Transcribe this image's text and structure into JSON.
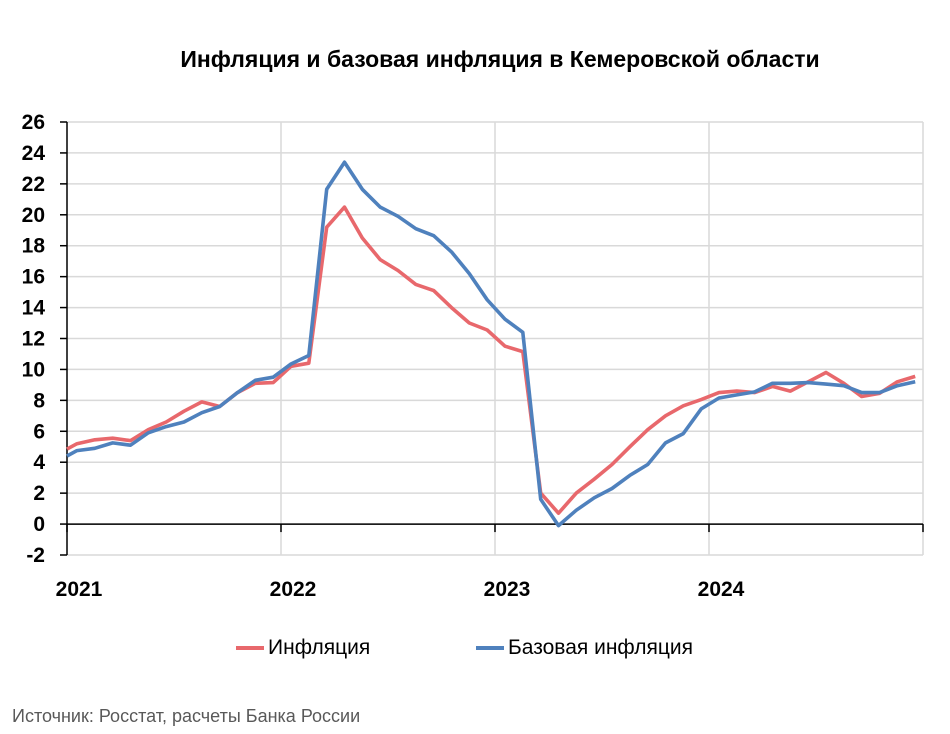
{
  "chart_data": {
    "type": "line",
    "title": "Инфляция и базовая инфляция в Кемеровской области",
    "xlabel": "",
    "ylabel": "",
    "x_unit": "months since January 2021",
    "x": [
      0,
      0.56,
      1.56,
      2.56,
      3.56,
      4.56,
      5.56,
      6.56,
      7.56,
      8.56,
      9.56,
      10.56,
      11.56,
      12.56,
      13.56,
      14.56,
      15.56,
      16.56,
      17.56,
      18.56,
      19.56,
      20.56,
      21.56,
      22.56,
      23.56,
      24.56,
      25.56,
      26.56,
      27.56,
      28.56,
      29.56,
      30.56,
      31.56,
      32.56,
      33.56,
      34.56,
      35.56,
      36.56,
      37.56,
      38.56,
      39.56,
      40.56,
      41.56,
      42.56,
      43.56,
      44.56,
      45.56,
      46.56,
      47.56
    ],
    "xlim": [
      0,
      48
    ],
    "x_ticks": [
      {
        "value": 0,
        "label": "2021"
      },
      {
        "value": 12,
        "label": "2022"
      },
      {
        "value": 24,
        "label": "2023"
      },
      {
        "value": 36,
        "label": "2024"
      }
    ],
    "ylim": [
      -2,
      26
    ],
    "y_ticks": [
      "-2",
      "0",
      "2",
      "4",
      "6",
      "8",
      "10",
      "12",
      "14",
      "16",
      "18",
      "20",
      "22",
      "24",
      "26"
    ],
    "grid": true,
    "legend_position": "bottom",
    "series": [
      {
        "name": "Инфляция",
        "color": "#e8686c",
        "values": [
          4.85,
          5.2,
          5.45,
          5.55,
          5.4,
          6.1,
          6.6,
          7.3,
          7.9,
          7.6,
          8.5,
          9.1,
          9.15,
          10.2,
          10.4,
          19.2,
          20.5,
          18.5,
          17.1,
          16.4,
          15.5,
          15.1,
          14.0,
          13.0,
          12.55,
          11.5,
          11.15,
          2.0,
          0.7,
          2.0,
          2.9,
          3.85,
          5.0,
          6.1,
          7.0,
          7.65,
          8.05,
          8.5,
          8.6,
          8.5,
          8.9,
          8.6,
          9.2,
          9.8,
          9.1,
          8.25,
          8.45,
          9.2,
          9.55
        ]
      },
      {
        "name": "Базовая инфляция",
        "color": "#4f81bd",
        "values": [
          4.4,
          4.75,
          4.9,
          5.25,
          5.1,
          5.9,
          6.3,
          6.6,
          7.2,
          7.6,
          8.5,
          9.3,
          9.5,
          10.35,
          10.9,
          21.65,
          23.4,
          21.65,
          20.5,
          19.9,
          19.1,
          18.65,
          17.6,
          16.2,
          14.5,
          13.25,
          12.4,
          1.6,
          -0.1,
          0.9,
          1.7,
          2.3,
          3.15,
          3.85,
          5.25,
          5.85,
          7.45,
          8.15,
          8.35,
          8.55,
          9.1,
          9.1,
          9.15,
          9.05,
          8.95,
          8.5,
          8.5,
          8.95,
          9.2
        ]
      }
    ]
  },
  "source": "Источник: Росстат, расчеты Банка России"
}
